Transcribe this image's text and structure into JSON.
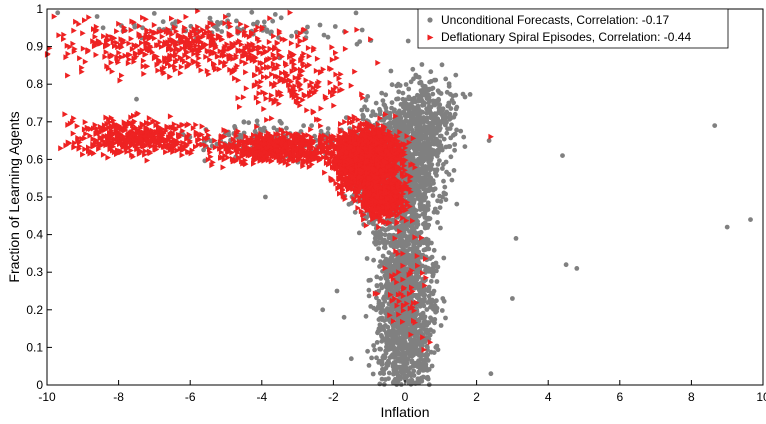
{
  "chart_data": {
    "type": "scatter",
    "title": "",
    "xlabel": "Inflation",
    "ylabel": "Fraction of Learning Agents",
    "xlim": [
      -10,
      10
    ],
    "ylim": [
      0,
      1
    ],
    "xticks": [
      -10,
      -8,
      -6,
      -4,
      -2,
      0,
      2,
      4,
      6,
      8,
      10
    ],
    "yticks": [
      0,
      0.1,
      0.2,
      0.3,
      0.4,
      0.5,
      0.6,
      0.7,
      0.8,
      0.9,
      1
    ],
    "grid": false,
    "legend_position": "top-right",
    "series": [
      {
        "name": "Unconditional Forecasts, Correlation: -0.17",
        "marker": "circle",
        "color": "#808080",
        "points": [
          [
            8.65,
            0.69
          ],
          [
            9.65,
            0.44
          ],
          [
            9.0,
            0.42
          ],
          [
            4.4,
            0.61
          ],
          [
            4.8,
            0.31
          ],
          [
            4.5,
            0.32
          ],
          [
            3.1,
            0.39
          ],
          [
            3.0,
            0.23
          ],
          [
            2.4,
            0.03
          ],
          [
            2.35,
            0.65
          ],
          [
            -9.7,
            0.99
          ],
          [
            -8.6,
            0.98
          ],
          [
            -7.5,
            0.76
          ],
          [
            -4.5,
            0.7
          ],
          [
            -3.9,
            0.5
          ],
          [
            -3.5,
            0.87
          ],
          [
            -2.3,
            0.2
          ],
          [
            -1.7,
            0.18
          ],
          [
            -1.5,
            0.07
          ],
          [
            -1.9,
            0.25
          ]
        ],
        "clusters": [
          {
            "x_center": 0.0,
            "x_spread": 0.8,
            "y_center": 0.22,
            "y_spread": 0.25,
            "count": 1500
          },
          {
            "x_center": -0.2,
            "x_spread": 1.1,
            "y_center": 0.58,
            "y_spread": 0.16,
            "count": 1300
          },
          {
            "x_center": 0.6,
            "x_spread": 0.9,
            "y_center": 0.7,
            "y_spread": 0.12,
            "count": 400
          },
          {
            "x_center": -3.5,
            "x_spread": 2.5,
            "y_center": 0.65,
            "y_spread": 0.05,
            "count": 150
          },
          {
            "x_center": -5.0,
            "x_spread": 4.5,
            "y_center": 0.95,
            "y_spread": 0.04,
            "count": 80
          }
        ]
      },
      {
        "name": "Deflationary Spiral Episodes, Correlation: -0.44",
        "marker": "triangle-right",
        "color": "#ee2222",
        "clusters": [
          {
            "x_center": -1.0,
            "x_spread": 0.9,
            "y_center": 0.6,
            "y_spread": 0.08,
            "count": 1800
          },
          {
            "x_center": -0.6,
            "x_spread": 0.6,
            "y_center": 0.5,
            "y_spread": 0.06,
            "count": 500
          },
          {
            "x_center": -3.5,
            "x_spread": 1.8,
            "y_center": 0.63,
            "y_spread": 0.04,
            "count": 600
          },
          {
            "x_center": -7.5,
            "x_spread": 1.8,
            "y_center": 0.66,
            "y_spread": 0.05,
            "count": 450
          },
          {
            "x_center": -6.0,
            "x_spread": 3.5,
            "y_center": 0.9,
            "y_spread": 0.07,
            "count": 500
          },
          {
            "x_center": -3.0,
            "x_spread": 1.5,
            "y_center": 0.8,
            "y_spread": 0.08,
            "count": 150
          },
          {
            "x_center": 0.0,
            "x_spread": 0.7,
            "y_center": 0.25,
            "y_spread": 0.18,
            "count": 60
          }
        ],
        "points": [
          [
            2.4,
            0.66
          ],
          [
            -9.8,
            0.98
          ],
          [
            -9.5,
            0.72
          ]
        ]
      }
    ]
  }
}
